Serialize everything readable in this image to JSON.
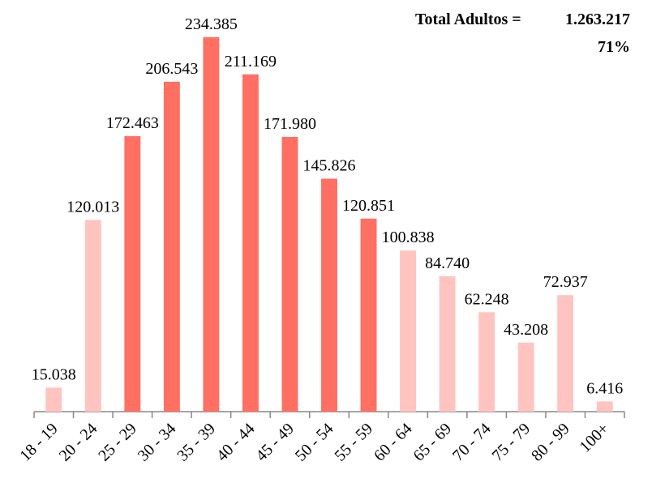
{
  "chart_data": {
    "type": "bar",
    "categories": [
      "18 - 19",
      "20 - 24",
      "25 - 29",
      "30 - 34",
      "35 - 39",
      "40 - 44",
      "45 - 49",
      "50 - 54",
      "55 - 59",
      "60 - 64",
      "65 - 69",
      "70 - 74",
      "75 - 79",
      "80 - 99",
      "100+"
    ],
    "values": [
      15038,
      120013,
      172463,
      206543,
      234385,
      211169,
      171980,
      145826,
      120851,
      100838,
      84740,
      62248,
      43208,
      72937,
      6416
    ],
    "value_labels": [
      "15.038",
      "120.013",
      "172.463",
      "206.543",
      "234.385",
      "211.169",
      "171.980",
      "145.826",
      "120.851",
      "100.838",
      "84.740",
      "62.248",
      "43.208",
      "72.937",
      "6.416"
    ],
    "colors": [
      "#ffc4c0",
      "#ffc4c0",
      "#ff6f62",
      "#ff6f62",
      "#ff6f62",
      "#ff6f62",
      "#ff6f62",
      "#ff6f62",
      "#ff6f62",
      "#ffc4c0",
      "#ffc4c0",
      "#ffc4c0",
      "#ffc4c0",
      "#ffc4c0",
      "#ffc4c0"
    ],
    "annotations": {
      "total_label": "Total Adultos =",
      "total_value": "1.263.217",
      "percent": "71%"
    }
  }
}
